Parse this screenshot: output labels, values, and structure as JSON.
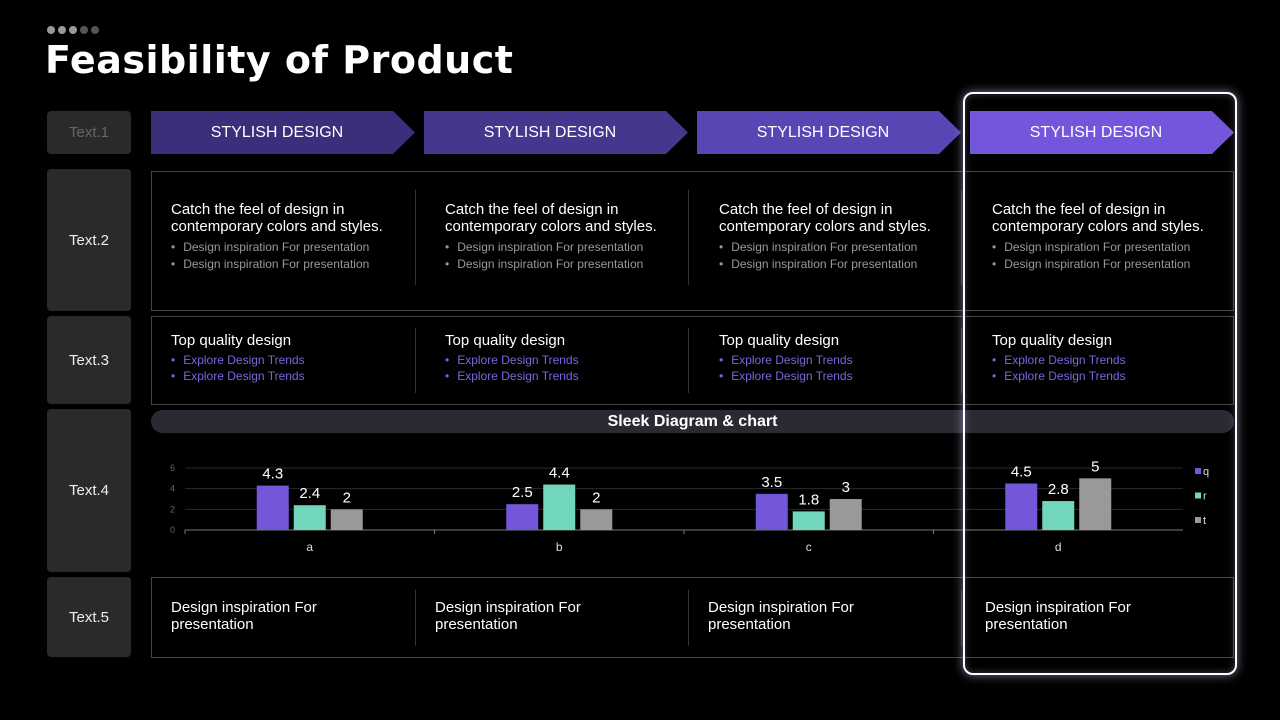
{
  "title": "Feasibility of Product",
  "row_labels": [
    "Text.1",
    "Text.2",
    "Text.3",
    "Text.4",
    "Text.5"
  ],
  "columns": [
    {
      "header": "STYLISH DESIGN",
      "color": "#3a2f7a",
      "row2_title": "Catch the feel of design in contemporary colors and styles.",
      "row2_bullets": [
        "Design inspiration For presentation",
        "Design inspiration For presentation"
      ],
      "row3_title": "Top quality design",
      "row3_bullets": [
        "Explore Design Trends",
        "Explore Design Trends"
      ],
      "row5": "Design inspiration For presentation"
    },
    {
      "header": "STYLISH DESIGN",
      "color": "#45378e",
      "row2_title": "Catch the feel of design in contemporary colors and styles.",
      "row2_bullets": [
        "Design inspiration For presentation",
        "Design inspiration For presentation"
      ],
      "row3_title": "Top quality design",
      "row3_bullets": [
        "Explore Design Trends",
        "Explore Design Trends"
      ],
      "row5": "Design inspiration For presentation"
    },
    {
      "header": "STYLISH DESIGN",
      "color": "#5a45b4",
      "row2_title": "Catch the feel of design in contemporary colors and styles.",
      "row2_bullets": [
        "Design inspiration For presentation",
        "Design inspiration For presentation"
      ],
      "row3_title": "Top quality design",
      "row3_bullets": [
        "Explore Design Trends",
        "Explore Design Trends"
      ],
      "row5": "Design inspiration For presentation"
    },
    {
      "header": "STYLISH DESIGN",
      "color": "#7356db",
      "row2_title": "Catch the feel of design in contemporary colors and styles.",
      "row2_bullets": [
        "Design inspiration For presentation",
        "Design inspiration For presentation"
      ],
      "row3_title": "Top quality design",
      "row3_bullets": [
        "Explore Design Trends",
        "Explore Design Trends"
      ],
      "row5": "Design inspiration For presentation"
    }
  ],
  "chart_title": "Sleek Diagram & chart",
  "chart_data": {
    "type": "bar",
    "title": "Sleek Diagram & chart",
    "categories": [
      "a",
      "b",
      "c",
      "d"
    ],
    "series": [
      {
        "name": "q",
        "color": "#7357d8",
        "values": [
          4.3,
          2.5,
          3.5,
          4.5
        ]
      },
      {
        "name": "r",
        "color": "#72d6bd",
        "values": [
          2.4,
          4.4,
          1.8,
          2.8
        ]
      },
      {
        "name": "t",
        "color": "#999999",
        "values": [
          2,
          2,
          3,
          5
        ]
      }
    ],
    "ylim": [
      0,
      6
    ],
    "yticks": [
      "0",
      "2",
      "4",
      "6"
    ],
    "grid": true,
    "legend": "right"
  }
}
